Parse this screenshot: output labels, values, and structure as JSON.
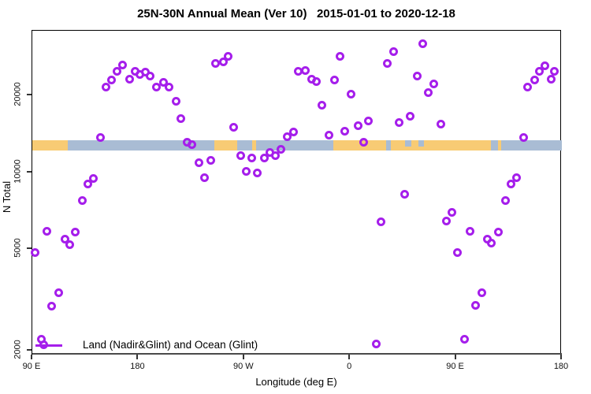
{
  "chart_data": {
    "type": "scatter",
    "title": "25N-30N Annual Mean (Ver 10)   2015-01-01 to 2020-12-18",
    "xlabel": "Longitude (deg E)",
    "ylabel": "N Total",
    "x_axis": {
      "note": "axis spans 450 deg of longitude starting at 90E, wrapping east through 180, 90W, 0, 90E to 180",
      "range_deg_along_axis": [
        0,
        450
      ],
      "ticks": [
        {
          "d": 0,
          "label": "90 E"
        },
        {
          "d": 90,
          "label": "180"
        },
        {
          "d": 180,
          "label": "90 W"
        },
        {
          "d": 270,
          "label": "0"
        },
        {
          "d": 360,
          "label": "90 E"
        },
        {
          "d": 450,
          "label": "180"
        }
      ]
    },
    "y_axis": {
      "scale": "log",
      "ticks": [
        2000,
        5000,
        10000,
        20000
      ],
      "tick_labels": [
        "2000",
        "5000",
        "10000",
        "20000"
      ],
      "range": [
        1900,
        38000
      ]
    },
    "legend": {
      "label": "Land (Nadir&Glint) and Ocean (Glint)",
      "position": "bottom-left",
      "marker": "open-circle-on-line"
    },
    "marker": {
      "shape": "open-circle",
      "color": "#A51EEB"
    },
    "map_band": {
      "description": "coastline strip for 25N-30N latitude drawn across the plot",
      "center_value": 12700,
      "land_color": "#F8CB74",
      "ocean_color": "#A9BCD4",
      "base": "ocean",
      "land_segments": [
        {
          "d0": 0,
          "d1": 30
        },
        {
          "d0": 155,
          "d1": 174
        },
        {
          "d0": 187,
          "d1": 190
        },
        {
          "d0": 256,
          "d1": 390
        },
        {
          "d0": 396,
          "d1": 398.5
        }
      ],
      "ocean_patches": [
        {
          "d0": 301,
          "d1": 304.5,
          "half": false
        },
        {
          "d0": 317,
          "d1": 322,
          "half": true
        },
        {
          "d0": 328,
          "d1": 333,
          "half": true
        }
      ]
    },
    "points": [
      [
        2.0,
        4830
      ],
      [
        7.4,
        2210
      ],
      [
        12.1,
        5850
      ],
      [
        16.7,
        2980
      ],
      [
        22.1,
        3360
      ],
      [
        27.5,
        5480
      ],
      [
        31.5,
        5220
      ],
      [
        36.2,
        5810
      ],
      [
        42.2,
        7770
      ],
      [
        46.9,
        9020
      ],
      [
        52.2,
        9480
      ],
      [
        57.6,
        13630
      ],
      [
        62.3,
        21620
      ],
      [
        67.6,
        22900
      ],
      [
        71.7,
        24760
      ],
      [
        77.0,
        26380
      ],
      [
        83.0,
        23060
      ],
      [
        87.1,
        24760
      ],
      [
        91.7,
        24060
      ],
      [
        96.4,
        24580
      ],
      [
        100.4,
        23720
      ],
      [
        105.8,
        21480
      ],
      [
        111.2,
        22420
      ],
      [
        116.5,
        21480
      ],
      [
        121.9,
        19020
      ],
      [
        125.9,
        16160
      ],
      [
        131.3,
        13150
      ],
      [
        135.9,
        12870
      ],
      [
        141.3,
        10860
      ],
      [
        146.0,
        9550
      ],
      [
        152.0,
        11160
      ],
      [
        156.0,
        26760
      ],
      [
        162.1,
        27140
      ],
      [
        166.7,
        28340
      ],
      [
        171.4,
        15050
      ],
      [
        176.8,
        11650
      ],
      [
        181.5,
        10040
      ],
      [
        186.8,
        11400
      ],
      [
        191.5,
        9960
      ],
      [
        196.9,
        11400
      ],
      [
        201.6,
        11980
      ],
      [
        206.9,
        11650
      ],
      [
        211.6,
        12330
      ],
      [
        216.3,
        13820
      ],
      [
        221.7,
        14420
      ],
      [
        226.3,
        24760
      ],
      [
        231.7,
        25100
      ],
      [
        237.1,
        23060
      ],
      [
        241.7,
        22580
      ],
      [
        245.8,
        18360
      ],
      [
        251.8,
        13920
      ],
      [
        256.5,
        22900
      ],
      [
        261.8,
        28340
      ],
      [
        265.8,
        14520
      ],
      [
        271.2,
        20280
      ],
      [
        277.2,
        15160
      ],
      [
        281.9,
        13150
      ],
      [
        285.9,
        15820
      ],
      [
        292.0,
        2120
      ],
      [
        296.6,
        6370
      ],
      [
        302.0,
        26580
      ],
      [
        306.7,
        29760
      ],
      [
        312.0,
        15600
      ],
      [
        316.7,
        8170
      ],
      [
        321.4,
        16620
      ],
      [
        326.8,
        23720
      ],
      [
        331.5,
        31960
      ],
      [
        336.2,
        20440
      ],
      [
        341.5,
        22100
      ],
      [
        346.9,
        15380
      ],
      [
        352.2,
        6460
      ],
      [
        356.3,
        6940
      ],
      [
        361.0,
        4860
      ],
      [
        367.0,
        2210
      ],
      [
        371.7,
        5850
      ],
      [
        377.0,
        3000
      ],
      [
        381.7,
        3380
      ],
      [
        386.4,
        5480
      ],
      [
        390.4,
        5260
      ],
      [
        396.4,
        5810
      ],
      [
        401.8,
        7770
      ],
      [
        406.5,
        9020
      ],
      [
        411.2,
        9550
      ],
      [
        417.2,
        13630
      ],
      [
        421.2,
        21620
      ],
      [
        427.2,
        22900
      ],
      [
        431.2,
        24900
      ],
      [
        435.9,
        26200
      ],
      [
        441.2,
        23060
      ],
      [
        443.9,
        24760
      ]
    ]
  }
}
